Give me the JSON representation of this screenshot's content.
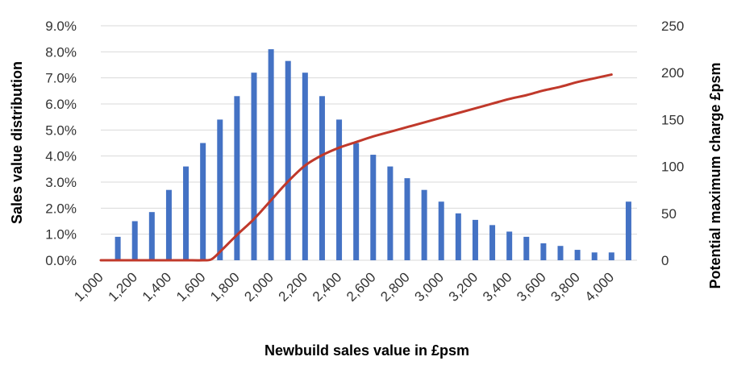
{
  "chart_data": {
    "type": "bar+line",
    "xlabel": "Newbuild sales value in £psm",
    "ylabel_left": "Sales value distribution",
    "ylabel_right": "Potential maximum charge £psm",
    "x_tick_labels": [
      "1,000",
      "1,200",
      "1,400",
      "1,600",
      "1,800",
      "2,000",
      "2,200",
      "2,400",
      "2,600",
      "2,800",
      "3,000",
      "3,200",
      "3,400",
      "3,600",
      "3,800",
      "4,000"
    ],
    "y_left_ticks": [
      "0.0%",
      "1.0%",
      "2.0%",
      "3.0%",
      "4.0%",
      "5.0%",
      "6.0%",
      "7.0%",
      "8.0%",
      "9.0%"
    ],
    "y_right_ticks": [
      "0",
      "50",
      "100",
      "150",
      "200",
      "250"
    ],
    "ylim_left": [
      0,
      9
    ],
    "ylim_right": [
      0,
      250
    ],
    "grid": true,
    "bar_series": {
      "name": "Sales value distribution",
      "color": "#4472C4",
      "x": [
        1100,
        1200,
        1300,
        1400,
        1500,
        1600,
        1700,
        1800,
        1900,
        2000,
        2100,
        2200,
        2300,
        2400,
        2500,
        2600,
        2700,
        2800,
        2900,
        3000,
        3100,
        3200,
        3300,
        3400,
        3500,
        3600,
        3700,
        3800,
        3900,
        4000,
        4100
      ],
      "values": [
        0.9,
        1.5,
        1.85,
        2.7,
        3.6,
        4.5,
        5.4,
        6.3,
        7.2,
        8.1,
        7.65,
        7.2,
        6.3,
        5.4,
        4.5,
        4.05,
        3.6,
        3.15,
        2.7,
        2.25,
        1.8,
        1.55,
        1.35,
        1.1,
        0.9,
        0.65,
        0.55,
        0.4,
        0.3,
        0.3,
        2.25
      ]
    },
    "line_series": {
      "name": "Potential maximum charge £psm",
      "color": "#C0392B",
      "axis": "right",
      "x": [
        1000,
        1100,
        1200,
        1300,
        1400,
        1500,
        1600,
        1650,
        1700,
        1800,
        1900,
        2000,
        2100,
        2200,
        2300,
        2400,
        2500,
        2600,
        2700,
        2800,
        2900,
        3000,
        3100,
        3200,
        3300,
        3400,
        3500,
        3600,
        3700,
        3800,
        3900,
        4000
      ],
      "values": [
        0,
        0,
        0,
        0,
        0,
        0,
        0,
        1,
        9,
        27,
        44,
        64,
        84,
        101,
        112,
        120,
        126,
        132,
        137,
        142,
        147,
        152,
        157,
        162,
        167,
        172,
        176,
        181,
        185,
        190,
        194,
        198
      ]
    }
  }
}
